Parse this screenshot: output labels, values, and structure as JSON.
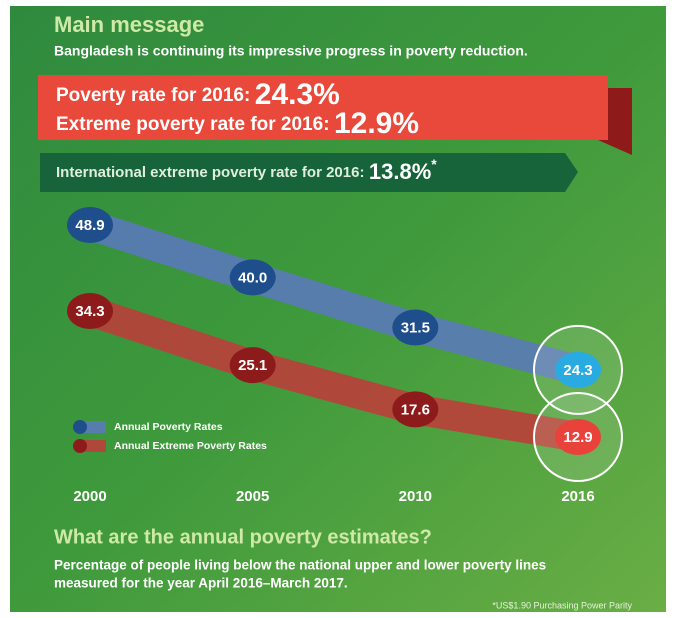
{
  "header": {
    "title": "Main message",
    "subtitle": "Bangladesh is continuing its impressive progress in poverty reduction."
  },
  "banners": [
    {
      "label": "Poverty rate for 2016:",
      "value": "24.3%"
    },
    {
      "label": "Extreme poverty rate for 2016:",
      "value": "12.9%"
    },
    {
      "label": "International extreme poverty rate for 2016:",
      "value": "13.8%",
      "note_mark": "*"
    }
  ],
  "chart_data": {
    "type": "line",
    "categories": [
      "2000",
      "2005",
      "2010",
      "2016"
    ],
    "series": [
      {
        "name": "Annual Poverty Rates",
        "color": "#1f4e8c",
        "band_color": "#5a78c0",
        "highlight_color": "#29abe2",
        "values": [
          48.9,
          40,
          31.5,
          24.3
        ],
        "value_labels": [
          "48.9",
          "40.0",
          "31.5",
          "24.3"
        ]
      },
      {
        "name": "Annual Extreme Poverty Rates",
        "color": "#8e1b1b",
        "band_color": "#c23a3a",
        "highlight_color": "#e8423a",
        "values": [
          34.3,
          25.1,
          17.6,
          12.9
        ],
        "value_labels": [
          "34.3",
          "25.1",
          "17.6",
          "12.9"
        ]
      }
    ],
    "legend": "lower left"
  },
  "section": {
    "title": "What are the annual poverty estimates?",
    "lines": [
      "Percentage of people living below the national upper and lower poverty lines",
      "measured for the year April 2016–March 2017."
    ]
  },
  "footnote": "*US$1.90 Purchasing Power Parity"
}
